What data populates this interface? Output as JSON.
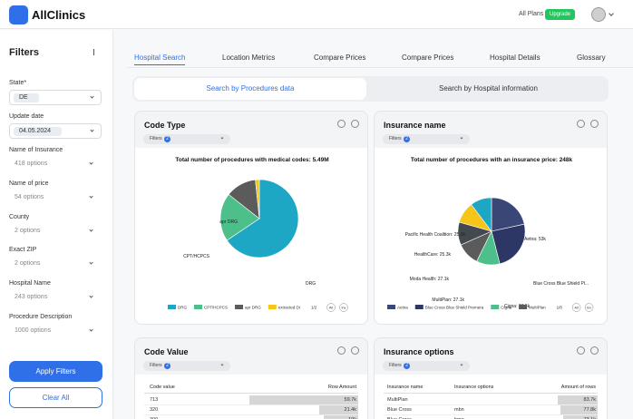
{
  "header": {
    "brand": "AllClinics",
    "plan": "All Plans",
    "badge": "Upgrade"
  },
  "sidebar": {
    "title": "Filters",
    "filters": [
      {
        "label": "State*",
        "value": "DE",
        "chip": true
      },
      {
        "label": "Update date",
        "value": "04.05.2024",
        "chip": true
      },
      {
        "label": "Name of Insurance",
        "value": "418 options",
        "chip": false
      },
      {
        "label": "Name of price",
        "value": "54 options",
        "chip": false
      },
      {
        "label": "County",
        "value": "2 options",
        "chip": false
      },
      {
        "label": "Exact ZIP",
        "value": "2 options",
        "chip": false
      },
      {
        "label": "Hospital Name",
        "value": "243 options",
        "chip": false
      },
      {
        "label": "Procedure Description",
        "value": "1000 options",
        "chip": false
      }
    ],
    "apply": "Apply Filters",
    "clear": "Clear All"
  },
  "tabs": [
    "Hospital Search",
    "Location Metrics",
    "Compare Prices",
    "Compare Prices",
    "Hospital Details",
    "Glossary"
  ],
  "subtabs": [
    "Search by Procedures data",
    "Search by Hospital information"
  ],
  "panels": [
    {
      "title": "Code Type",
      "filter": "Filters",
      "filter_count": "2",
      "chart": {
        "type": "pie",
        "title": "Total number of procedures with medical codes: 5.49M",
        "slices": [
          {
            "name": "DRG",
            "color": "#1ea7c5",
            "value": 3600000
          },
          {
            "name": "CPT/HCPCS",
            "color": "#4cbf8a",
            "value": 1100000
          },
          {
            "name": "apr DRG",
            "color": "#5b5b5b",
            "value": 700000
          },
          {
            "name": "extracted DI",
            "color": "#f5c518",
            "value": 90000
          }
        ],
        "pager": "1/2",
        "all": "All",
        "inv": "Inv"
      }
    },
    {
      "title": "Insurance name",
      "filter": "Filters",
      "filter_count": "2",
      "chart": {
        "type": "pie",
        "title": "Total number of procedures with an insurance price: 248k",
        "slices": [
          {
            "label": "Aetna: 53k",
            "color": "#3a4675",
            "value": 53000
          },
          {
            "label": "Blue Cross Blue Shield Pl...",
            "color": "#2c3766",
            "value": 60000
          },
          {
            "label": "Cigna: 27.6k",
            "color": "#4cbf8a",
            "value": 27600
          },
          {
            "label": "MultiPlan: 27.1k",
            "color": "#5b5b5b",
            "value": 27100
          },
          {
            "label": "Moda Health: 27.1k",
            "color": "#44484f",
            "value": 27100
          },
          {
            "label": "HealthCare: 25.3k",
            "color": "#f5c518",
            "value": 25300
          },
          {
            "label": "Pacific Health Coalition: 25.3k",
            "color": "#1ea7c5",
            "value": 25300
          }
        ],
        "legend": [
          {
            "name": "Aetna",
            "color": "#3a4675"
          },
          {
            "name": "Blue Cross Blue Shield Premera",
            "color": "#2c3766"
          },
          {
            "name": "Cigna",
            "color": "#4cbf8a"
          },
          {
            "name": "MultiPlan",
            "color": "#5b5b5b"
          }
        ],
        "pager": "1/8",
        "all": "All",
        "inv": "Inv"
      }
    },
    {
      "title": "Code Value",
      "filter": "Filters",
      "filter_count": "2",
      "table": {
        "headers": [
          "Code value",
          "Row Amount"
        ],
        "rows": [
          {
            "cells": [
              "713"
            ],
            "amount": 59700,
            "amount_label": "59.7k"
          },
          {
            "cells": [
              "320"
            ],
            "amount": 21400,
            "amount_label": "21.4k"
          },
          {
            "cells": [
              "300"
            ],
            "amount": 19000,
            "amount_label": "19k"
          }
        ]
      }
    },
    {
      "title": "Insurance options",
      "filter": "Filters",
      "filter_count": "2",
      "table": {
        "headers": [
          "Insurance name",
          "Insurance options",
          "Amount of rows"
        ],
        "rows": [
          {
            "cells": [
              "MultiPlan",
              null
            ],
            "amount": 83700,
            "amount_label": "83.7k"
          },
          {
            "cells": [
              "Blue Cross",
              "mbn"
            ],
            "amount": 77800,
            "amount_label": "77.8k"
          },
          {
            "cells": [
              "Blue Cross",
              "hmo"
            ],
            "amount": 73100,
            "amount_label": "73.1k"
          }
        ]
      }
    }
  ]
}
